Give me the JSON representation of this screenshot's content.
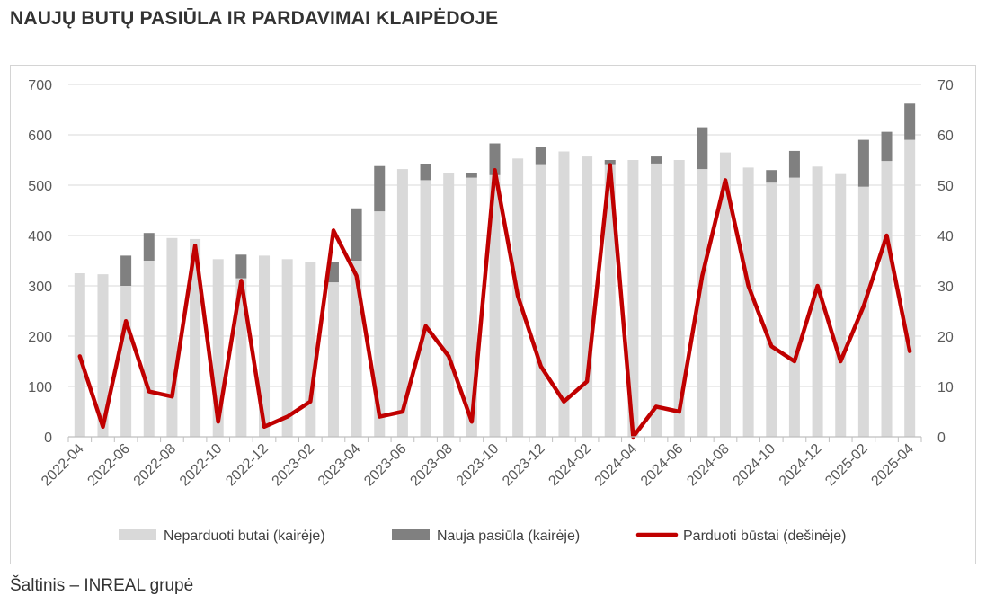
{
  "title": "NAUJŲ BUTŲ PASIŪLA IR PARDAVIMAI KLAIPĖDOJE",
  "source": "Šaltinis – INREAL grupė",
  "colors": {
    "unsold": "#d9d9d9",
    "new_supply": "#808080",
    "sold": "#c00000",
    "grid": "#d9d9d9",
    "axis_text": "#595959"
  },
  "chart_data": {
    "type": "bar+line",
    "x": [
      "2022-04",
      "2022-05",
      "2022-06",
      "2022-07",
      "2022-08",
      "2022-09",
      "2022-10",
      "2022-11",
      "2022-12",
      "2023-01",
      "2023-02",
      "2023-03",
      "2023-04",
      "2023-05",
      "2023-06",
      "2023-07",
      "2023-08",
      "2023-09",
      "2023-10",
      "2023-11",
      "2023-12",
      "2024-01",
      "2024-02",
      "2024-03",
      "2024-04",
      "2024-05",
      "2024-06",
      "2024-07",
      "2024-08",
      "2024-09",
      "2024-10",
      "2024-11",
      "2024-12",
      "2025-01",
      "2025-02",
      "2025-03",
      "2025-04"
    ],
    "x_tick_labels": [
      "2022-04",
      "2022-06",
      "2022-08",
      "2022-10",
      "2022-12",
      "2023-02",
      "2023-04",
      "2023-06",
      "2023-08",
      "2023-10",
      "2023-12",
      "2024-02",
      "2024-04",
      "2024-06",
      "2024-08",
      "2024-10",
      "2024-12",
      "2025-02",
      "2025-04"
    ],
    "series": [
      {
        "name": "Neparduoti butai (kairėje)",
        "axis": "left",
        "kind": "bar",
        "values": [
          325,
          323,
          300,
          350,
          395,
          393,
          353,
          315,
          360,
          353,
          347,
          307,
          350,
          448,
          532,
          510,
          525,
          515,
          520,
          553,
          540,
          567,
          557,
          540,
          550,
          543,
          550,
          532,
          565,
          535,
          505,
          515,
          537,
          522,
          497,
          548,
          590
        ]
      },
      {
        "name": "Nauja pasiūla (kairėje)",
        "axis": "left",
        "kind": "bar-stacked",
        "values": [
          0,
          0,
          60,
          55,
          0,
          0,
          0,
          47,
          0,
          0,
          0,
          40,
          104,
          90,
          0,
          32,
          0,
          10,
          63,
          0,
          36,
          0,
          0,
          10,
          0,
          14,
          0,
          83,
          0,
          0,
          25,
          53,
          0,
          0,
          93,
          58,
          72
        ]
      },
      {
        "name": "Parduoti būstai (dešinėje)",
        "axis": "right",
        "kind": "line",
        "values": [
          16,
          2,
          23,
          9,
          8,
          38,
          3,
          31,
          2,
          4,
          7,
          41,
          32,
          4,
          5,
          22,
          16,
          3,
          53,
          28,
          14,
          7,
          11,
          54,
          0,
          6,
          5,
          32,
          51,
          30,
          18,
          15,
          30,
          15,
          26,
          40,
          17
        ]
      }
    ],
    "y_left": {
      "min": 0,
      "max": 700,
      "ticks": [
        0,
        100,
        200,
        300,
        400,
        500,
        600,
        700
      ]
    },
    "y_right": {
      "min": 0,
      "max": 70,
      "ticks": [
        0,
        10,
        20,
        30,
        40,
        50,
        60,
        70
      ]
    },
    "grid": true,
    "legend_position": "bottom"
  }
}
